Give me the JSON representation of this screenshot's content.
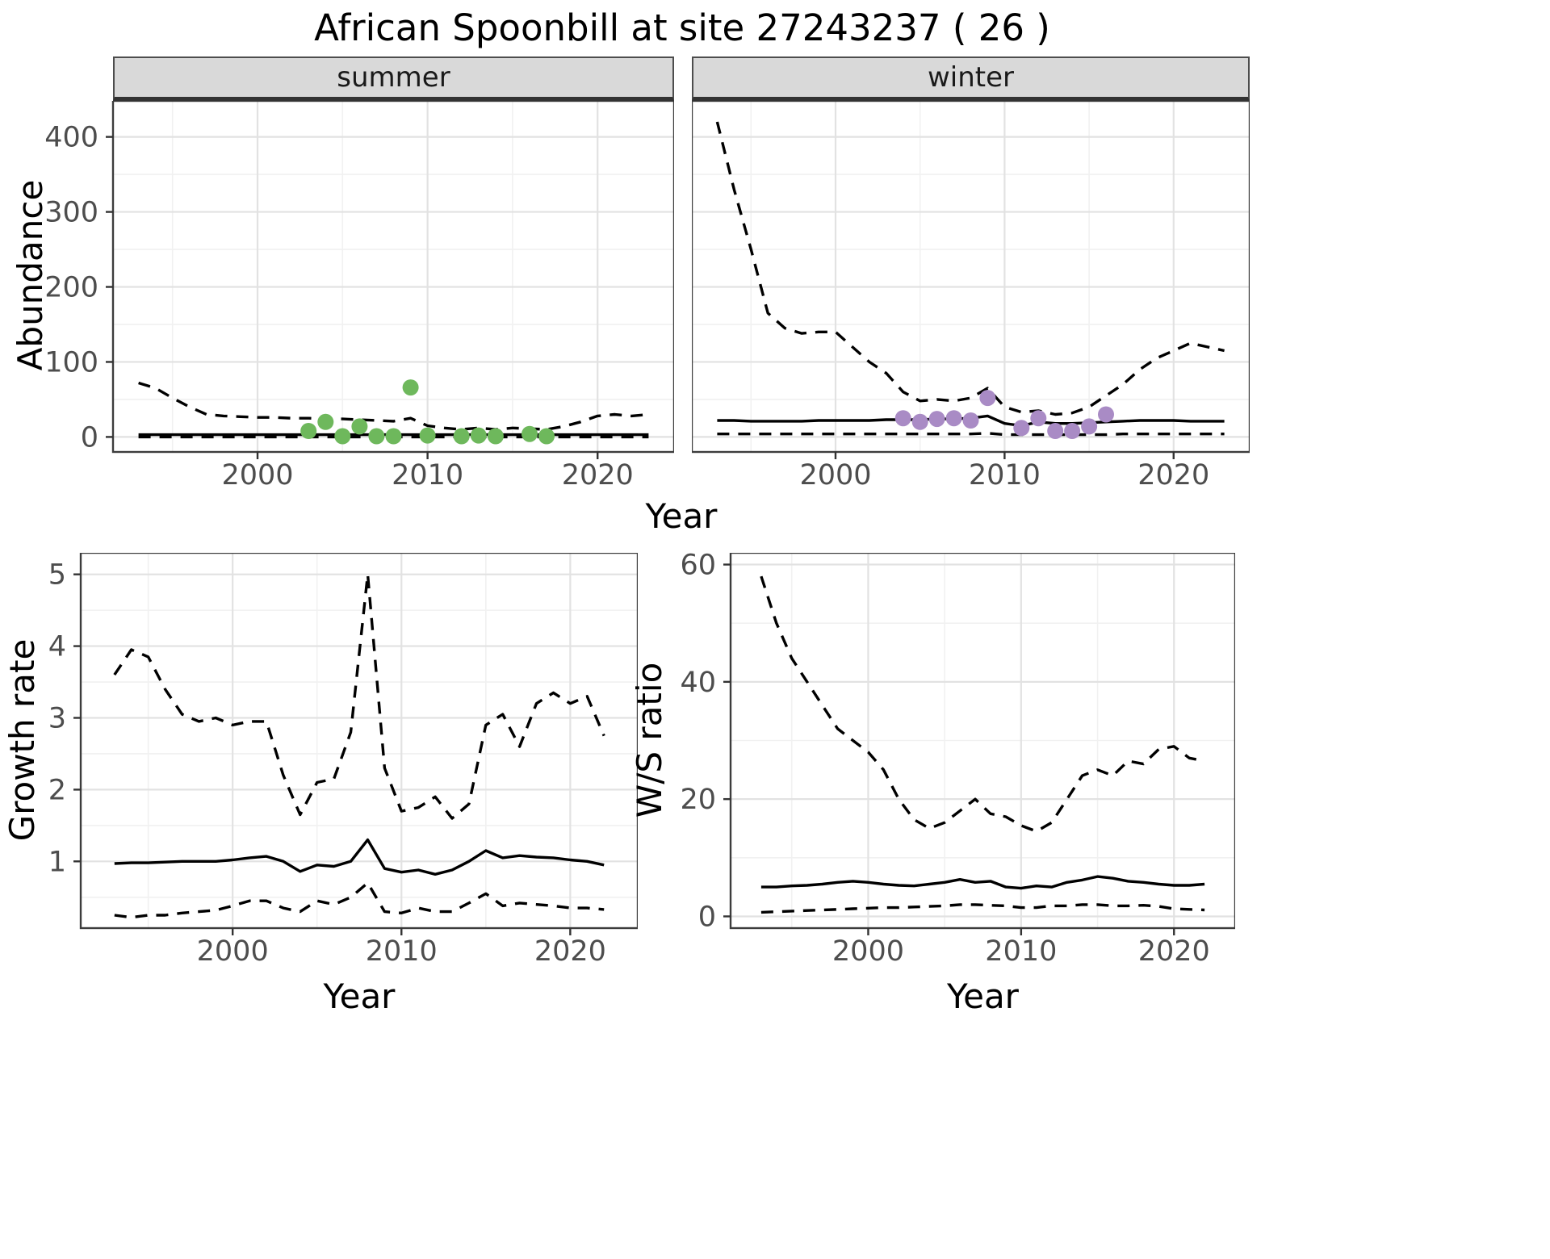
{
  "title": "African Spoonbill at site 27243237 ( 26 )",
  "facets": {
    "summer": "summer",
    "winter": "winter"
  },
  "labels": {
    "abundance_ylabel": "Abundance",
    "top_xlabel": "Year",
    "growth_ylabel": "Growth rate",
    "growth_xlabel": "Year",
    "ratio_ylabel": "W/S ratio",
    "ratio_xlabel": "Year"
  },
  "colors": {
    "summer_points": "#6EB85C",
    "winter_points": "#A98BC5",
    "line": "#000000",
    "strip_bg": "#D9D9D9",
    "grid_major": "#E2E2E2",
    "grid_minor": "#F1F1F1",
    "panel_border": "#3C3C3C",
    "tick_text": "#4D4D4D"
  },
  "chart_data": [
    {
      "target": "svg-summer",
      "name": "abundance-summer",
      "type": "line",
      "facet": "summer",
      "xlabel": "Year",
      "ylabel": "Abundance",
      "xlim": [
        1991.5,
        2024.5
      ],
      "ylim": [
        -20,
        448
      ],
      "xticks": [
        2000,
        2010,
        2020
      ],
      "yticks": [
        0,
        100,
        200,
        300,
        400
      ],
      "xminor": [
        1995,
        2005,
        2015
      ],
      "yminor": [
        50,
        150,
        250,
        350
      ],
      "show_ytick_labels": true,
      "series": [
        {
          "name": "upper_CI",
          "style": "dashed",
          "x": [
            1993,
            1994,
            1995,
            1996,
            1997,
            1998,
            1999,
            2000,
            2001,
            2002,
            2003,
            2004,
            2005,
            2006,
            2007,
            2008,
            2009,
            2010,
            2011,
            2012,
            2013,
            2014,
            2015,
            2016,
            2017,
            2018,
            2019,
            2020,
            2021,
            2022,
            2023
          ],
          "y": [
            72,
            65,
            52,
            40,
            30,
            28,
            27,
            26,
            26,
            25,
            25,
            24,
            24,
            23,
            22,
            21,
            25,
            15,
            12,
            10,
            12,
            10,
            12,
            11,
            10,
            14,
            20,
            28,
            30,
            28,
            30
          ]
        },
        {
          "name": "median",
          "style": "solid",
          "x": [
            1993,
            1994,
            1995,
            1996,
            1997,
            1998,
            1999,
            2000,
            2001,
            2002,
            2003,
            2004,
            2005,
            2006,
            2007,
            2008,
            2009,
            2010,
            2011,
            2012,
            2013,
            2014,
            2015,
            2016,
            2017,
            2018,
            2019,
            2020,
            2021,
            2022,
            2023
          ],
          "y": [
            3,
            3,
            3,
            3,
            3,
            3,
            3,
            3,
            3,
            3,
            3,
            3,
            3,
            3,
            3,
            3,
            3,
            3,
            3,
            3,
            3,
            3,
            3,
            3,
            3,
            3,
            3,
            3,
            3,
            3,
            3
          ]
        },
        {
          "name": "lower_CI",
          "style": "dashed",
          "x": [
            1993,
            1994,
            1995,
            1996,
            1997,
            1998,
            1999,
            2000,
            2001,
            2002,
            2003,
            2004,
            2005,
            2006,
            2007,
            2008,
            2009,
            2010,
            2011,
            2012,
            2013,
            2014,
            2015,
            2016,
            2017,
            2018,
            2019,
            2020,
            2021,
            2022,
            2023
          ],
          "y": [
            0,
            0,
            0,
            0,
            0,
            0,
            0,
            0,
            0,
            0,
            0,
            0,
            0,
            0,
            0,
            0,
            0,
            0,
            0,
            0,
            0,
            0,
            0,
            0,
            0,
            0,
            0,
            0,
            0,
            0,
            0
          ]
        }
      ],
      "dots": {
        "name": "summer_counts",
        "color": "#6EB85C",
        "x": [
          2003,
          2004,
          2005,
          2006,
          2007,
          2008,
          2009,
          2010,
          2012,
          2013,
          2014,
          2016,
          2017
        ],
        "y": [
          8,
          20,
          1,
          14,
          1,
          1,
          66,
          2,
          1,
          2,
          1,
          4,
          1
        ]
      }
    },
    {
      "target": "svg-winter",
      "name": "abundance-winter",
      "type": "line",
      "facet": "winter",
      "xlabel": "Year",
      "ylabel": "Abundance",
      "xlim": [
        1991.5,
        2024.5
      ],
      "ylim": [
        -20,
        448
      ],
      "xticks": [
        2000,
        2010,
        2020
      ],
      "yticks": [
        0,
        100,
        200,
        300,
        400
      ],
      "xminor": [
        1995,
        2005,
        2015
      ],
      "yminor": [
        50,
        150,
        250,
        350
      ],
      "show_ytick_labels": false,
      "series": [
        {
          "name": "upper_CI",
          "style": "dashed",
          "x": [
            1993,
            1994,
            1995,
            1996,
            1997,
            1998,
            1999,
            2000,
            2001,
            2002,
            2003,
            2004,
            2005,
            2006,
            2007,
            2008,
            2009,
            2010,
            2011,
            2012,
            2013,
            2014,
            2015,
            2016,
            2017,
            2018,
            2019,
            2020,
            2021,
            2022,
            2023
          ],
          "y": [
            420,
            330,
            250,
            165,
            145,
            138,
            140,
            140,
            120,
            100,
            85,
            60,
            48,
            50,
            48,
            52,
            65,
            40,
            33,
            35,
            30,
            32,
            40,
            55,
            70,
            90,
            105,
            115,
            125,
            120,
            115
          ]
        },
        {
          "name": "median",
          "style": "solid",
          "x": [
            1993,
            1994,
            1995,
            1996,
            1997,
            1998,
            1999,
            2000,
            2001,
            2002,
            2003,
            2004,
            2005,
            2006,
            2007,
            2008,
            2009,
            2010,
            2011,
            2012,
            2013,
            2014,
            2015,
            2016,
            2017,
            2018,
            2019,
            2020,
            2021,
            2022,
            2023
          ],
          "y": [
            22,
            22,
            21,
            21,
            21,
            21,
            22,
            22,
            22,
            22,
            23,
            23,
            23,
            24,
            24,
            25,
            28,
            18,
            15,
            20,
            18,
            18,
            19,
            20,
            21,
            22,
            22,
            22,
            21,
            21,
            21
          ]
        },
        {
          "name": "lower_CI",
          "style": "dashed",
          "x": [
            1993,
            1994,
            1995,
            1996,
            1997,
            1998,
            1999,
            2000,
            2001,
            2002,
            2003,
            2004,
            2005,
            2006,
            2007,
            2008,
            2009,
            2010,
            2011,
            2012,
            2013,
            2014,
            2015,
            2016,
            2017,
            2018,
            2019,
            2020,
            2021,
            2022,
            2023
          ],
          "y": [
            4,
            4,
            4,
            4,
            4,
            4,
            4,
            4,
            4,
            4,
            4,
            4,
            4,
            4,
            4,
            4,
            5,
            3,
            3,
            3,
            3,
            3,
            3,
            3,
            4,
            4,
            4,
            4,
            4,
            4,
            4
          ]
        }
      ],
      "dots": {
        "name": "winter_counts",
        "color": "#A98BC5",
        "x": [
          2004,
          2005,
          2006,
          2007,
          2008,
          2009,
          2011,
          2012,
          2013,
          2014,
          2015,
          2016
        ],
        "y": [
          25,
          20,
          24,
          25,
          22,
          52,
          12,
          25,
          8,
          8,
          14,
          30
        ]
      }
    },
    {
      "target": "svg-growth",
      "name": "growth-rate",
      "type": "line",
      "xlabel": "Year",
      "ylabel": "Growth rate",
      "xlim": [
        1991,
        2024
      ],
      "ylim": [
        0.07,
        5.3
      ],
      "xticks": [
        2000,
        2010,
        2020
      ],
      "yticks": [
        1,
        2,
        3,
        4,
        5
      ],
      "xminor": [
        1995,
        2005,
        2015
      ],
      "yminor": [
        0.5,
        1.5,
        2.5,
        3.5,
        4.5
      ],
      "show_ytick_labels": true,
      "series": [
        {
          "name": "upper_CI",
          "style": "dashed",
          "x": [
            1993,
            1994,
            1995,
            1996,
            1997,
            1998,
            1999,
            2000,
            2001,
            2002,
            2003,
            2004,
            2005,
            2006,
            2007,
            2008,
            2009,
            2010,
            2011,
            2012,
            2013,
            2014,
            2015,
            2016,
            2017,
            2018,
            2019,
            2020,
            2021,
            2022
          ],
          "y": [
            3.6,
            3.95,
            3.85,
            3.4,
            3.05,
            2.95,
            3.0,
            2.9,
            2.95,
            2.95,
            2.2,
            1.65,
            2.1,
            2.15,
            2.8,
            5.0,
            2.3,
            1.7,
            1.75,
            1.9,
            1.6,
            1.8,
            2.9,
            3.05,
            2.6,
            3.2,
            3.35,
            3.2,
            3.3,
            2.75
          ]
        },
        {
          "name": "median",
          "style": "solid",
          "x": [
            1993,
            1994,
            1995,
            1996,
            1997,
            1998,
            1999,
            2000,
            2001,
            2002,
            2003,
            2004,
            2005,
            2006,
            2007,
            2008,
            2009,
            2010,
            2011,
            2012,
            2013,
            2014,
            2015,
            2016,
            2017,
            2018,
            2019,
            2020,
            2021,
            2022
          ],
          "y": [
            0.97,
            0.98,
            0.98,
            0.99,
            1.0,
            1.0,
            1.0,
            1.02,
            1.05,
            1.07,
            1.0,
            0.86,
            0.95,
            0.93,
            1.0,
            1.3,
            0.9,
            0.85,
            0.88,
            0.82,
            0.88,
            1.0,
            1.15,
            1.05,
            1.08,
            1.06,
            1.05,
            1.02,
            1.0,
            0.95
          ]
        },
        {
          "name": "lower_CI",
          "style": "dashed",
          "x": [
            1993,
            1994,
            1995,
            1996,
            1997,
            1998,
            1999,
            2000,
            2001,
            2002,
            2003,
            2004,
            2005,
            2006,
            2007,
            2008,
            2009,
            2010,
            2011,
            2012,
            2013,
            2014,
            2015,
            2016,
            2017,
            2018,
            2019,
            2020,
            2021,
            2022
          ],
          "y": [
            0.25,
            0.22,
            0.25,
            0.25,
            0.28,
            0.3,
            0.32,
            0.38,
            0.45,
            0.45,
            0.35,
            0.3,
            0.45,
            0.4,
            0.5,
            0.7,
            0.3,
            0.28,
            0.35,
            0.3,
            0.3,
            0.42,
            0.55,
            0.38,
            0.42,
            0.4,
            0.38,
            0.35,
            0.35,
            0.33
          ]
        }
      ]
    },
    {
      "target": "svg-ratio",
      "name": "winter-summer-ratio",
      "type": "line",
      "xlabel": "Year",
      "ylabel": "W/S ratio",
      "xlim": [
        1991,
        2024
      ],
      "ylim": [
        -2,
        62
      ],
      "xticks": [
        2000,
        2010,
        2020
      ],
      "yticks": [
        0,
        20,
        40,
        60
      ],
      "xminor": [
        1995,
        2005,
        2015
      ],
      "yminor": [
        10,
        30,
        50
      ],
      "show_ytick_labels": true,
      "series": [
        {
          "name": "upper_CI",
          "style": "dashed",
          "x": [
            1993,
            1994,
            1995,
            1996,
            1997,
            1998,
            1999,
            2000,
            2001,
            2002,
            2003,
            2004,
            2005,
            2006,
            2007,
            2008,
            2009,
            2010,
            2011,
            2012,
            2013,
            2014,
            2015,
            2016,
            2017,
            2018,
            2019,
            2020,
            2021,
            2022
          ],
          "y": [
            58,
            50,
            44,
            40,
            36,
            32,
            30,
            28,
            25,
            20,
            16.5,
            15,
            16,
            18,
            20,
            17.5,
            17,
            15.5,
            14.5,
            16,
            20,
            24,
            25,
            24,
            26.5,
            26,
            28.5,
            29,
            27,
            26.5
          ]
        },
        {
          "name": "median",
          "style": "solid",
          "x": [
            1993,
            1994,
            1995,
            1996,
            1997,
            1998,
            1999,
            2000,
            2001,
            2002,
            2003,
            2004,
            2005,
            2006,
            2007,
            2008,
            2009,
            2010,
            2011,
            2012,
            2013,
            2014,
            2015,
            2016,
            2017,
            2018,
            2019,
            2020,
            2021,
            2022
          ],
          "y": [
            5,
            5,
            5.2,
            5.3,
            5.5,
            5.8,
            6,
            5.8,
            5.5,
            5.3,
            5.2,
            5.5,
            5.8,
            6.3,
            5.8,
            6,
            5,
            4.8,
            5.2,
            5,
            5.8,
            6.2,
            6.8,
            6.5,
            6,
            5.8,
            5.5,
            5.3,
            5.3,
            5.5
          ]
        },
        {
          "name": "lower_CI",
          "style": "dashed",
          "x": [
            1993,
            1994,
            1995,
            1996,
            1997,
            1998,
            1999,
            2000,
            2001,
            2002,
            2003,
            2004,
            2005,
            2006,
            2007,
            2008,
            2009,
            2010,
            2011,
            2012,
            2013,
            2014,
            2015,
            2016,
            2017,
            2018,
            2019,
            2020,
            2021,
            2022
          ],
          "y": [
            0.7,
            0.8,
            0.9,
            1,
            1.1,
            1.2,
            1.3,
            1.4,
            1.5,
            1.5,
            1.6,
            1.7,
            1.8,
            2,
            2,
            1.9,
            1.8,
            1.5,
            1.5,
            1.8,
            1.8,
            2,
            2,
            1.8,
            1.8,
            1.9,
            1.7,
            1.3,
            1.2,
            1.1
          ]
        }
      ]
    }
  ]
}
